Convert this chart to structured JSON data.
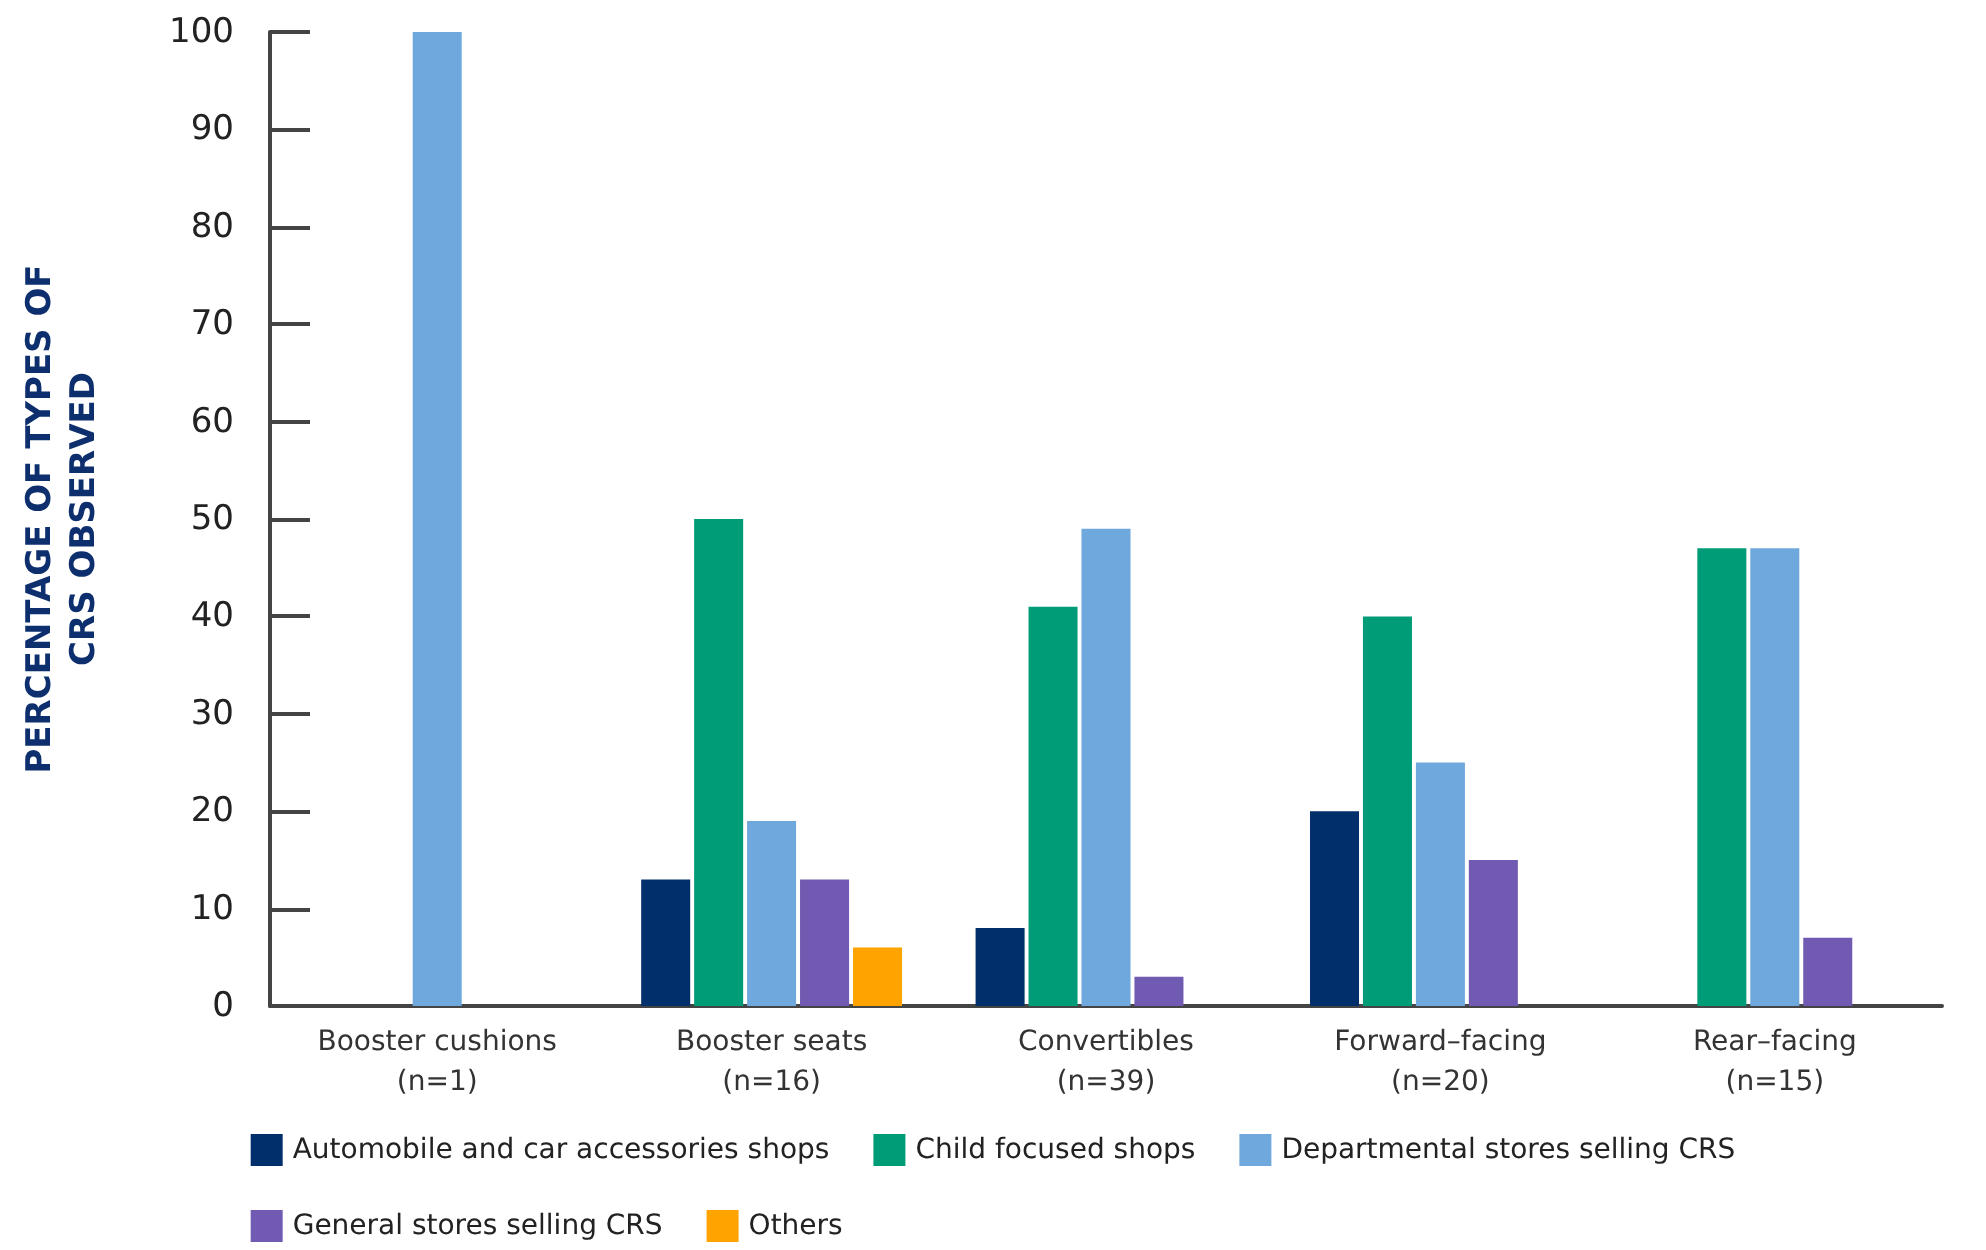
{
  "chart_data": {
    "type": "bar",
    "ylabel": "PERCENTAGE OF TYPES OF\nCRS OBSERVED",
    "categories": [
      "Booster cushions\n(n=1)",
      "Booster seats\n(n=16)",
      "Convertibles\n(n=39)",
      "Forward–facing\n(n=20)",
      "Rear–facing\n(n=15)"
    ],
    "series": [
      {
        "name": "Automobile and car accessories shops",
        "color": "#002f6c",
        "values": [
          0,
          13,
          8,
          20,
          0
        ]
      },
      {
        "name": "Child focused shops",
        "color": "#009b77",
        "values": [
          0,
          50,
          41,
          40,
          47
        ]
      },
      {
        "name": "Departmental stores selling CRS",
        "color": "#6fa8dc",
        "values": [
          100,
          19,
          49,
          25,
          47
        ]
      },
      {
        "name": "General stores selling CRS",
        "color": "#715ab1",
        "values": [
          0,
          13,
          3,
          15,
          7
        ]
      },
      {
        "name": "Others",
        "color": "#ffa300",
        "values": [
          0,
          6,
          0,
          0,
          0
        ]
      }
    ],
    "ylim": [
      0,
      100
    ],
    "yticks": [
      0,
      10,
      20,
      30,
      40,
      50,
      60,
      70,
      80,
      90,
      100
    ],
    "grid": false,
    "legend": "bottom"
  }
}
